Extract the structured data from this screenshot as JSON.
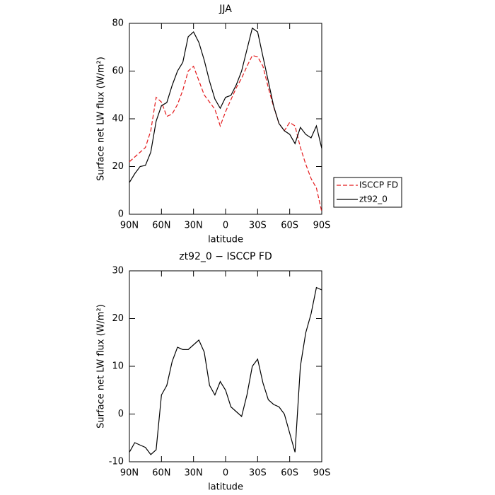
{
  "chart_data": [
    {
      "type": "line",
      "title": "JJA",
      "xlabel": "latitude",
      "ylabel": "Surface net LW flux (W/m²)",
      "x": [
        90,
        85,
        80,
        75,
        70,
        65,
        60,
        55,
        50,
        45,
        40,
        35,
        30,
        25,
        20,
        15,
        10,
        5,
        0,
        -5,
        -10,
        -15,
        -20,
        -25,
        -30,
        -35,
        -40,
        -45,
        -50,
        -55,
        -60,
        -65,
        -70,
        -75,
        -80,
        -85,
        -90
      ],
      "xlim": [
        90,
        -90
      ],
      "xticks": [
        {
          "value": 90,
          "label": "90N"
        },
        {
          "value": 60,
          "label": "60N"
        },
        {
          "value": 30,
          "label": "30N"
        },
        0,
        {
          "value": -30,
          "label": "30S"
        },
        {
          "value": -60,
          "label": "60S"
        },
        {
          "value": -90,
          "label": "90S"
        }
      ],
      "ylim": [
        0,
        80
      ],
      "yticks": [
        0,
        20,
        40,
        60,
        80
      ],
      "legend": "right",
      "series": [
        {
          "name": "ISCCP FD",
          "color": "#e41a1c",
          "style": "dashed",
          "values": [
            22,
            24,
            26,
            28,
            35,
            49,
            47,
            41,
            42,
            46,
            52,
            60,
            62,
            56,
            50,
            47,
            44,
            37,
            43,
            48,
            53,
            57,
            62,
            66.5,
            66,
            62,
            53,
            45,
            38,
            35,
            38.5,
            37,
            28,
            21,
            15,
            11,
            1
          ]
        },
        {
          "name": "zt92_0",
          "color": "#000000",
          "style": "solid",
          "values": [
            13.3,
            17,
            20,
            20.5,
            26,
            39,
            45.5,
            46.8,
            54,
            60,
            63.7,
            74.4,
            76.4,
            72,
            64.6,
            55.7,
            48.3,
            44.4,
            49,
            49.8,
            54.2,
            60,
            69,
            78,
            76.4,
            66,
            55.7,
            45.3,
            38,
            35,
            33.5,
            29.6,
            36.4,
            33.5,
            32,
            37,
            27.6
          ]
        }
      ]
    },
    {
      "type": "line",
      "title": "zt92_0 − ISCCP FD",
      "xlabel": "latitude",
      "ylabel": "Surface net LW flux (W/m²)",
      "x": [
        90,
        85,
        80,
        75,
        70,
        65,
        60,
        55,
        50,
        45,
        40,
        35,
        30,
        25,
        20,
        15,
        10,
        5,
        0,
        -5,
        -10,
        -15,
        -20,
        -25,
        -30,
        -35,
        -40,
        -45,
        -50,
        -55,
        -60,
        -65,
        -70,
        -75,
        -80,
        -85,
        -90
      ],
      "xlim": [
        90,
        -90
      ],
      "xticks": [
        {
          "value": 90,
          "label": "90N"
        },
        {
          "value": 60,
          "label": "60N"
        },
        {
          "value": 30,
          "label": "30N"
        },
        0,
        {
          "value": -30,
          "label": "30S"
        },
        {
          "value": -60,
          "label": "60S"
        },
        {
          "value": -90,
          "label": "90S"
        }
      ],
      "ylim": [
        -10,
        30
      ],
      "yticks": [
        -10,
        0,
        10,
        20,
        30
      ],
      "series": [
        {
          "color": "#000000",
          "style": "solid",
          "values": [
            -8,
            -6,
            -6.5,
            -7,
            -8.5,
            -7.5,
            4,
            6,
            11,
            14,
            13.5,
            13.5,
            14.5,
            15.5,
            13,
            6,
            4,
            6.8,
            5,
            1.5,
            0.5,
            -0.5,
            4,
            10,
            11.5,
            6.5,
            3,
            2,
            1.5,
            0,
            -4,
            -8,
            10,
            17,
            21,
            26.5,
            26
          ]
        }
      ]
    }
  ]
}
